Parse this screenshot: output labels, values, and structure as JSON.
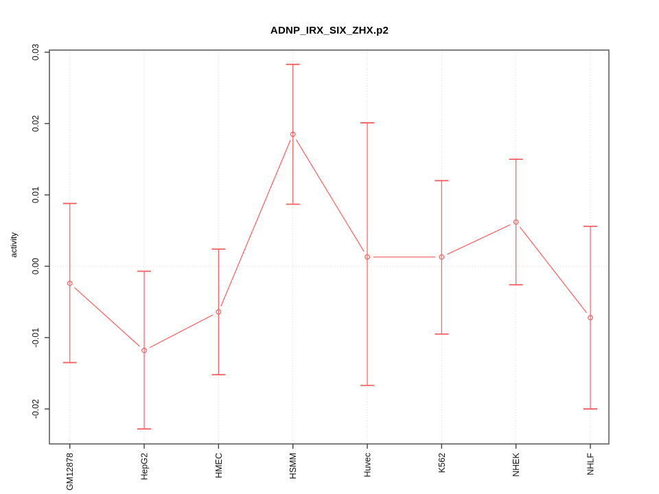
{
  "chart_data": {
    "type": "line",
    "title": "ADNP_IRX_SIX_ZHX.p2",
    "ylabel": "activity",
    "xlabel": "",
    "categories": [
      "GM12878",
      "HepG2",
      "HMEC",
      "HSMM",
      "Huvec",
      "K562",
      "NHEK",
      "NHLF"
    ],
    "series": [
      {
        "name": "mean activity",
        "values": [
          -0.0024,
          -0.0118,
          -0.0064,
          0.0185,
          0.0013,
          0.0013,
          0.0062,
          -0.0072
        ]
      },
      {
        "name": "upper error bound",
        "values": [
          0.0088,
          -0.0007,
          0.0024,
          0.0283,
          0.0201,
          0.012,
          0.015,
          0.0056
        ]
      },
      {
        "name": "lower error bound",
        "values": [
          -0.0135,
          -0.0228,
          -0.0152,
          0.0087,
          -0.0167,
          -0.0095,
          -0.0026,
          -0.02
        ]
      }
    ],
    "yticks": [
      0.03,
      0.02,
      0.01,
      0.0,
      -0.01,
      -0.02
    ],
    "ylim": [
      -0.0249,
      0.0303
    ],
    "grid": "dotted vertical line at each category; dotted horizontal line at y=0",
    "legend": "none",
    "marker": "open-circle",
    "colors": {
      "series": "#fa5e5e",
      "grid": "#d6d6d6",
      "box": "#5f5f5f",
      "tick": "#3d3d3d",
      "text": "#111111"
    }
  }
}
